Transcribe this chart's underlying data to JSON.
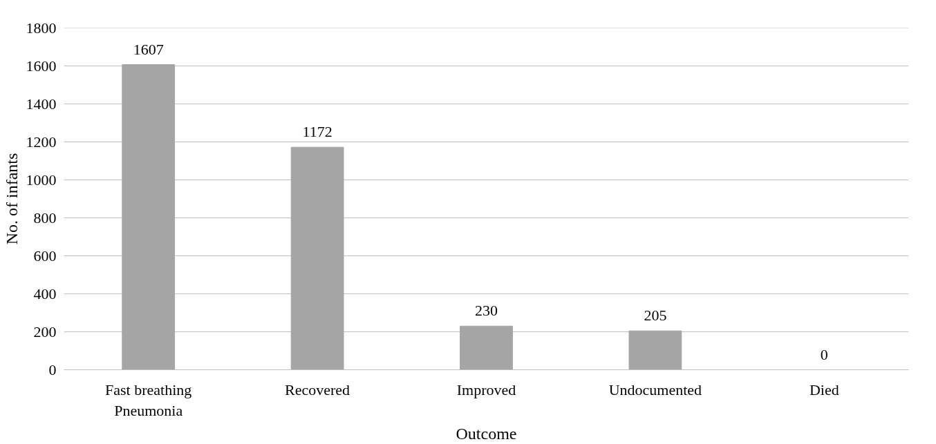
{
  "chart_data": {
    "type": "bar",
    "xlabel": "Outcome",
    "ylabel": "No. of infants",
    "categories": [
      "Fast breathing Pneumonia",
      "Recovered",
      "Improved",
      "Undocumented",
      "Died"
    ],
    "values": [
      1607,
      1172,
      230,
      205,
      0
    ],
    "color": "#a5a5a5",
    "ylim": [
      0,
      1800
    ],
    "yticks": [
      0,
      200,
      400,
      600,
      800,
      1000,
      1200,
      1400,
      1600,
      1800
    ],
    "grid": "y",
    "data_labels": true
  }
}
